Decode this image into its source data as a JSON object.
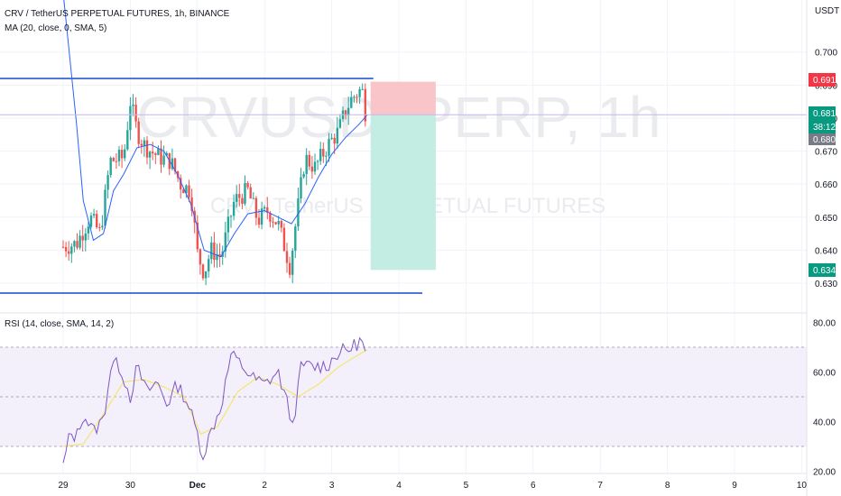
{
  "header": {
    "symbol_title": "CRV / TetherUS PERPETUAL FUTURES, 1h, BINANCE",
    "ma_legend": "MA (20, close, 0, SMA, 5)",
    "rsi_legend": "RSI (14, close, SMA, 14, 2)",
    "currency": "USDT"
  },
  "watermark": {
    "line1": "CRVUSDTPERP, 1h",
    "line2": "CRV / TetherUS PERPETUAL FUTURES"
  },
  "price_axis": {
    "ticks": [
      "0.700",
      "0.690",
      "0.680",
      "0.670",
      "0.660",
      "0.650",
      "0.640",
      "0.630"
    ]
  },
  "rsi_axis": {
    "ticks": [
      "80.00",
      "60.00",
      "40.00",
      "20.00"
    ]
  },
  "time_axis": {
    "ticks": [
      "29",
      "30",
      "Dec",
      "2",
      "3",
      "4",
      "5",
      "6",
      "7",
      "8",
      "9",
      "10"
    ]
  },
  "price_tags": {
    "stop": "0.691",
    "last": "0.681",
    "countdown": "38:12",
    "ma": "0.680",
    "target": "0.634"
  },
  "colors": {
    "up": "#26a69a",
    "down": "#ef5350",
    "ma": "#2962ff",
    "rsi": "#7e57c2",
    "rsi_ma": "#f5e66e",
    "hline": "#1848cc",
    "stop_zone": "#f9c5c8",
    "target_zone": "#c3ece3"
  },
  "chart_data": [
    {
      "type": "candlestick",
      "title": "CRV / TetherUS PERPETUAL FUTURES, 1h, BINANCE",
      "x_labels": [
        "29",
        "30",
        "Dec",
        "2",
        "3",
        "4",
        "5",
        "6",
        "7",
        "8",
        "9",
        "10"
      ],
      "ylim": [
        0.626,
        0.706
      ],
      "close_path": [
        {
          "x": 0.0,
          "y": 0.641
        },
        {
          "x": 0.2,
          "y": 0.642
        },
        {
          "x": 0.4,
          "y": 0.65
        },
        {
          "x": 0.55,
          "y": 0.645
        },
        {
          "x": 0.7,
          "y": 0.667
        },
        {
          "x": 0.9,
          "y": 0.668
        },
        {
          "x": 1.0,
          "y": 0.685
        },
        {
          "x": 1.1,
          "y": 0.676
        },
        {
          "x": 1.2,
          "y": 0.672
        },
        {
          "x": 1.3,
          "y": 0.67
        },
        {
          "x": 1.45,
          "y": 0.668
        },
        {
          "x": 1.6,
          "y": 0.667
        },
        {
          "x": 1.75,
          "y": 0.66
        },
        {
          "x": 1.9,
          "y": 0.658
        },
        {
          "x": 2.0,
          "y": 0.639
        },
        {
          "x": 2.1,
          "y": 0.633
        },
        {
          "x": 2.2,
          "y": 0.64
        },
        {
          "x": 2.35,
          "y": 0.638
        },
        {
          "x": 2.55,
          "y": 0.655
        },
        {
          "x": 2.75,
          "y": 0.658
        },
        {
          "x": 2.9,
          "y": 0.649
        },
        {
          "x": 3.05,
          "y": 0.652
        },
        {
          "x": 3.2,
          "y": 0.648
        },
        {
          "x": 3.38,
          "y": 0.635
        },
        {
          "x": 3.45,
          "y": 0.646
        },
        {
          "x": 3.6,
          "y": 0.668
        },
        {
          "x": 3.75,
          "y": 0.665
        },
        {
          "x": 3.95,
          "y": 0.672
        },
        {
          "x": 4.1,
          "y": 0.676
        },
        {
          "x": 4.2,
          "y": 0.682
        },
        {
          "x": 4.3,
          "y": 0.686
        },
        {
          "x": 4.45,
          "y": 0.689
        },
        {
          "x": 4.5,
          "y": 0.682
        },
        {
          "x": 4.53,
          "y": 0.681
        }
      ],
      "ma_path": [
        {
          "x": 0.0,
          "y": 0.718
        },
        {
          "x": 0.2,
          "y": 0.678
        },
        {
          "x": 0.3,
          "y": 0.655
        },
        {
          "x": 0.45,
          "y": 0.643
        },
        {
          "x": 0.6,
          "y": 0.645
        },
        {
          "x": 0.75,
          "y": 0.658
        },
        {
          "x": 0.9,
          "y": 0.663
        },
        {
          "x": 1.1,
          "y": 0.671
        },
        {
          "x": 1.3,
          "y": 0.672
        },
        {
          "x": 1.5,
          "y": 0.67
        },
        {
          "x": 1.7,
          "y": 0.663
        },
        {
          "x": 1.9,
          "y": 0.654
        },
        {
          "x": 2.1,
          "y": 0.64
        },
        {
          "x": 2.35,
          "y": 0.638
        },
        {
          "x": 2.55,
          "y": 0.645
        },
        {
          "x": 2.75,
          "y": 0.651
        },
        {
          "x": 3.0,
          "y": 0.652
        },
        {
          "x": 3.2,
          "y": 0.65
        },
        {
          "x": 3.4,
          "y": 0.648
        },
        {
          "x": 3.6,
          "y": 0.654
        },
        {
          "x": 3.8,
          "y": 0.662
        },
        {
          "x": 4.0,
          "y": 0.669
        },
        {
          "x": 4.2,
          "y": 0.674
        },
        {
          "x": 4.4,
          "y": 0.678
        },
        {
          "x": 4.53,
          "y": 0.681
        }
      ],
      "horizontal_lines": [
        0.692,
        0.627
      ],
      "trade_zone": {
        "x_start": 4.58,
        "x_end": 5.55,
        "stop": 0.691,
        "entry": 0.681,
        "target": 0.634
      }
    },
    {
      "type": "line",
      "title": "RSI (14, close, SMA, 14, 2)",
      "ylim": [
        18,
        82
      ],
      "levels": [
        70,
        50,
        30
      ],
      "series": [
        {
          "values_path": [
            {
              "x": 0.0,
              "y": 22
            },
            {
              "x": 0.1,
              "y": 35
            },
            {
              "x": 0.2,
              "y": 34
            },
            {
              "x": 0.3,
              "y": 43
            },
            {
              "x": 0.45,
              "y": 36
            },
            {
              "x": 0.6,
              "y": 41
            },
            {
              "x": 0.72,
              "y": 64
            },
            {
              "x": 0.85,
              "y": 62
            },
            {
              "x": 1.0,
              "y": 50
            },
            {
              "x": 1.1,
              "y": 62
            },
            {
              "x": 1.25,
              "y": 52
            },
            {
              "x": 1.4,
              "y": 56
            },
            {
              "x": 1.55,
              "y": 47
            },
            {
              "x": 1.7,
              "y": 55
            },
            {
              "x": 1.85,
              "y": 48
            },
            {
              "x": 2.0,
              "y": 35
            },
            {
              "x": 2.08,
              "y": 26
            },
            {
              "x": 2.2,
              "y": 36
            },
            {
              "x": 2.35,
              "y": 46
            },
            {
              "x": 2.5,
              "y": 67
            },
            {
              "x": 2.65,
              "y": 63
            },
            {
              "x": 2.8,
              "y": 58
            },
            {
              "x": 3.0,
              "y": 55
            },
            {
              "x": 3.2,
              "y": 60
            },
            {
              "x": 3.35,
              "y": 46
            },
            {
              "x": 3.42,
              "y": 38
            },
            {
              "x": 3.55,
              "y": 63
            },
            {
              "x": 3.75,
              "y": 62
            },
            {
              "x": 3.95,
              "y": 63
            },
            {
              "x": 4.1,
              "y": 68
            },
            {
              "x": 4.25,
              "y": 69
            },
            {
              "x": 4.45,
              "y": 73
            },
            {
              "x": 4.5,
              "y": 67
            },
            {
              "x": 4.53,
              "y": 59
            }
          ]
        },
        {
          "values_path": [
            {
              "x": 0.0,
              "y": 30
            },
            {
              "x": 0.3,
              "y": 31
            },
            {
              "x": 0.6,
              "y": 43
            },
            {
              "x": 0.9,
              "y": 56
            },
            {
              "x": 1.2,
              "y": 57
            },
            {
              "x": 1.5,
              "y": 54
            },
            {
              "x": 1.8,
              "y": 50
            },
            {
              "x": 2.05,
              "y": 35
            },
            {
              "x": 2.3,
              "y": 38
            },
            {
              "x": 2.6,
              "y": 52
            },
            {
              "x": 2.9,
              "y": 58
            },
            {
              "x": 3.2,
              "y": 55
            },
            {
              "x": 3.5,
              "y": 50
            },
            {
              "x": 3.8,
              "y": 55
            },
            {
              "x": 4.1,
              "y": 62
            },
            {
              "x": 4.4,
              "y": 67
            },
            {
              "x": 4.53,
              "y": 69
            }
          ]
        }
      ]
    }
  ]
}
